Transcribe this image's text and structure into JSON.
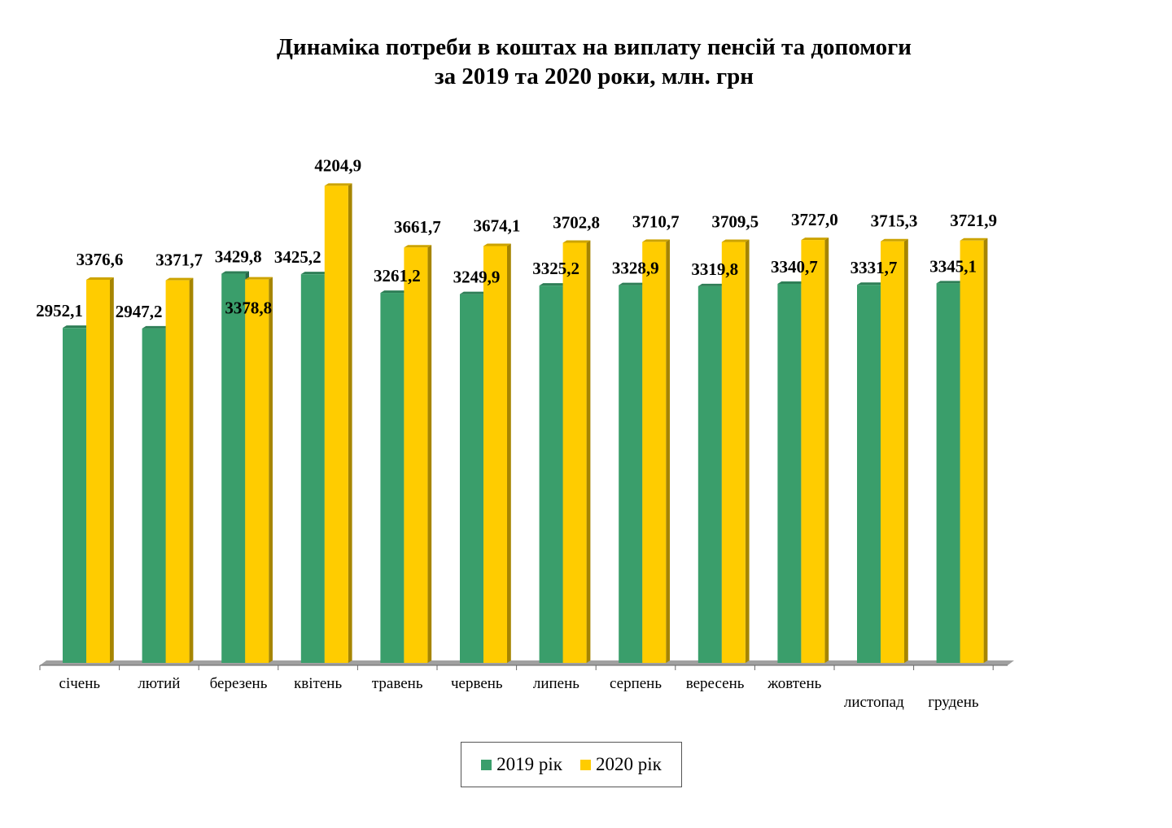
{
  "chart_data": {
    "type": "bar",
    "title_line1": "Динаміка потреби в коштах на виплату пенсій та допомоги",
    "title_line2": "за 2019 та 2020 роки, млн. грн",
    "categories": [
      "січень",
      "лютий",
      "березень",
      "квітень",
      "травень",
      "червень",
      "липень",
      "серпень",
      "вересень",
      "жовтень",
      "листопад",
      "грудень"
    ],
    "series": [
      {
        "name": "2019 рік",
        "color": "#3a9e6b",
        "values": [
          2952.1,
          2947.2,
          3429.8,
          3425.2,
          3261.2,
          3249.9,
          3325.2,
          3328.9,
          3319.8,
          3340.7,
          3331.7,
          3345.1
        ],
        "labels": [
          "2952,1",
          "2947,2",
          "3429,8",
          "3425,2",
          "3261,2",
          "3249,9",
          "3325,2",
          "3328,9",
          "3319,8",
          "3340,7",
          "3331,7",
          "3345,1"
        ]
      },
      {
        "name": "2020 рік",
        "color": "#ffcc00",
        "values": [
          3376.6,
          3371.7,
          3378.8,
          4204.9,
          3661.7,
          3674.1,
          3702.8,
          3710.7,
          3709.5,
          3727.0,
          3715.3,
          3721.9
        ],
        "labels": [
          "3376,6",
          "3371,7",
          "3378,8",
          "4204,9",
          "3661,7",
          "3674,1",
          "3702,8",
          "3710,7",
          "3709,5",
          "3727,0",
          "3715,3",
          "3721,9"
        ]
      }
    ],
    "ylim": [
      0,
      4500
    ],
    "grid": false,
    "legend_position": "bottom"
  }
}
